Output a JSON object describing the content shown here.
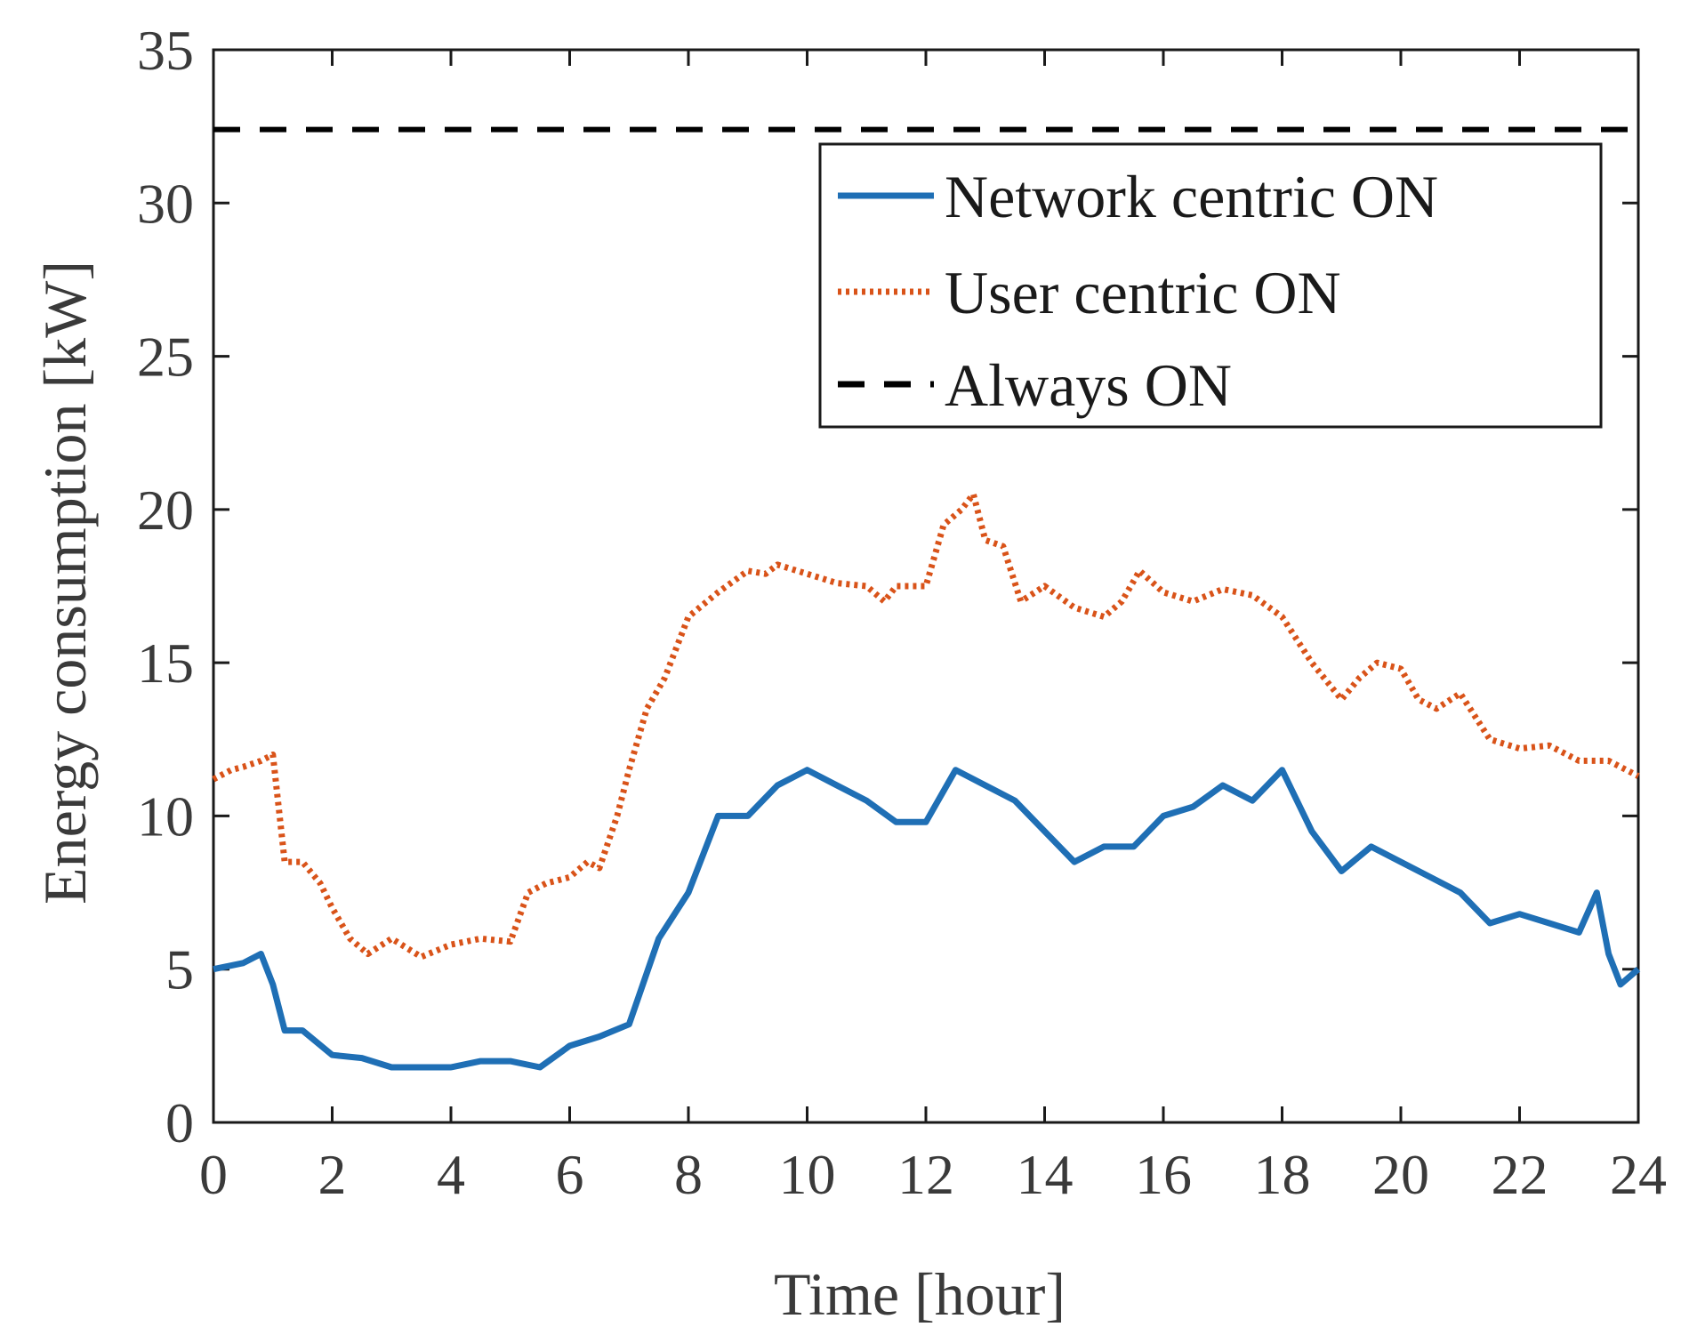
{
  "chart_data": {
    "type": "line",
    "xlabel": "Time [hour]",
    "ylabel": "Energy consumption [kW]",
    "xlim": [
      0,
      24
    ],
    "ylim": [
      0,
      35
    ],
    "xticks": [
      0,
      2,
      4,
      6,
      8,
      10,
      12,
      14,
      16,
      18,
      20,
      22,
      24
    ],
    "yticks": [
      0,
      5,
      10,
      15,
      20,
      25,
      30,
      35
    ],
    "grid": false,
    "legend_position": "top-right",
    "series": [
      {
        "name": "Network centric ON",
        "color": "#1f6fb5",
        "style": "solid",
        "x": [
          0,
          0.5,
          0.8,
          1.0,
          1.2,
          1.5,
          2.0,
          2.5,
          3.0,
          3.5,
          4.0,
          4.5,
          5.0,
          5.5,
          6.0,
          6.5,
          7.0,
          7.5,
          8.0,
          8.5,
          9.0,
          9.5,
          10.0,
          10.5,
          11.0,
          11.5,
          12.0,
          12.5,
          13.0,
          13.5,
          14.0,
          14.5,
          15.0,
          15.5,
          16.0,
          16.5,
          17.0,
          17.5,
          18.0,
          18.5,
          19.0,
          19.5,
          20.0,
          20.5,
          21.0,
          21.5,
          22.0,
          22.5,
          23.0,
          23.3,
          23.5,
          23.7,
          24.0
        ],
        "y": [
          5.0,
          5.2,
          5.5,
          4.5,
          3.0,
          3.0,
          2.2,
          2.1,
          1.8,
          1.8,
          1.8,
          2.0,
          2.0,
          1.8,
          2.5,
          2.8,
          3.2,
          6.0,
          7.5,
          10.0,
          10.0,
          11.0,
          11.5,
          11.0,
          10.5,
          9.8,
          9.8,
          11.5,
          11.0,
          10.5,
          9.5,
          8.5,
          9.0,
          9.0,
          10.0,
          10.3,
          11.0,
          10.5,
          11.5,
          9.5,
          8.2,
          9.0,
          8.5,
          8.0,
          7.5,
          6.5,
          6.8,
          6.5,
          6.2,
          7.5,
          5.5,
          4.5,
          5.0
        ]
      },
      {
        "name": "User centric ON",
        "color": "#d95319",
        "style": "dotted",
        "x": [
          0,
          0.3,
          0.5,
          0.8,
          1.0,
          1.2,
          1.5,
          1.8,
          2.0,
          2.3,
          2.6,
          3.0,
          3.5,
          4.0,
          4.5,
          5.0,
          5.3,
          5.6,
          6.0,
          6.3,
          6.5,
          6.8,
          7.0,
          7.3,
          7.6,
          8.0,
          8.5,
          9.0,
          9.3,
          9.5,
          10.0,
          10.5,
          11.0,
          11.3,
          11.5,
          12.0,
          12.3,
          12.6,
          12.8,
          13.0,
          13.3,
          13.6,
          14.0,
          14.5,
          15.0,
          15.3,
          15.6,
          16.0,
          16.5,
          17.0,
          17.5,
          18.0,
          18.5,
          19.0,
          19.3,
          19.6,
          20.0,
          20.3,
          20.6,
          21.0,
          21.5,
          22.0,
          22.5,
          23.0,
          23.5,
          24.0
        ],
        "y": [
          11.2,
          11.5,
          11.6,
          11.8,
          12.0,
          8.5,
          8.5,
          7.8,
          7.0,
          6.0,
          5.5,
          6.0,
          5.4,
          5.8,
          6.0,
          5.9,
          7.5,
          7.8,
          8.0,
          8.5,
          8.3,
          10.0,
          11.5,
          13.5,
          14.5,
          16.5,
          17.3,
          18.0,
          17.9,
          18.2,
          17.9,
          17.6,
          17.5,
          17.0,
          17.5,
          17.5,
          19.5,
          20.0,
          20.5,
          19.0,
          18.8,
          17.0,
          17.5,
          16.8,
          16.5,
          17.0,
          18.0,
          17.3,
          17.0,
          17.4,
          17.2,
          16.5,
          15.0,
          13.8,
          14.5,
          15.0,
          14.8,
          13.8,
          13.5,
          14.0,
          12.5,
          12.2,
          12.3,
          11.8,
          11.8,
          11.3
        ]
      },
      {
        "name": "Always ON",
        "color": "#000000",
        "style": "dashed",
        "x": [
          0,
          24
        ],
        "y": [
          32.4,
          32.4
        ]
      }
    ]
  }
}
